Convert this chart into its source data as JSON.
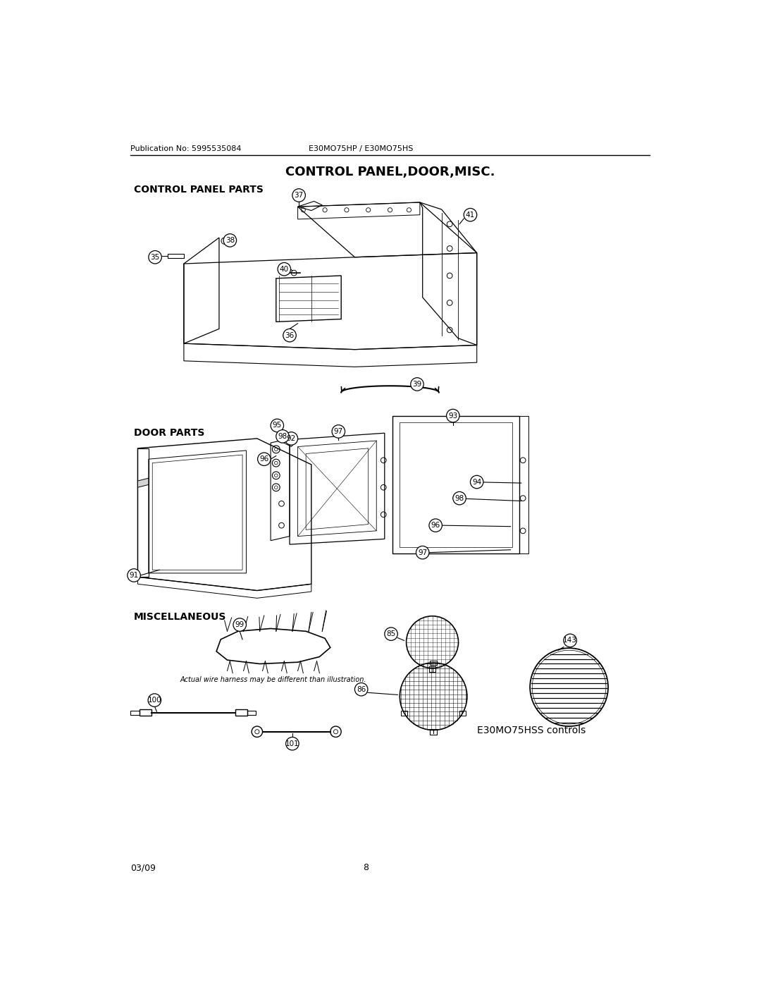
{
  "page_width": 10.8,
  "page_height": 13.97,
  "dpi": 100,
  "background_color": "#ffffff",
  "header_pub_text": "Publication No: 5995535084",
  "header_model_text": "E30MO75HP / E30MO75HS",
  "main_title": "CONTROL PANEL,DOOR,MISC.",
  "section1_title": "CONTROL PANEL PARTS",
  "section2_title": "DOOR PARTS",
  "section3_title": "MISCELLANEOUS",
  "footer_left": "03/09",
  "footer_center": "8",
  "misc_caption": "Actual wire harness may be different than illustration.",
  "misc_model_text": "E30MO75HSS controls",
  "header_fontsize": 8,
  "title_fontsize": 13,
  "section_fontsize": 10,
  "footer_fontsize": 9
}
